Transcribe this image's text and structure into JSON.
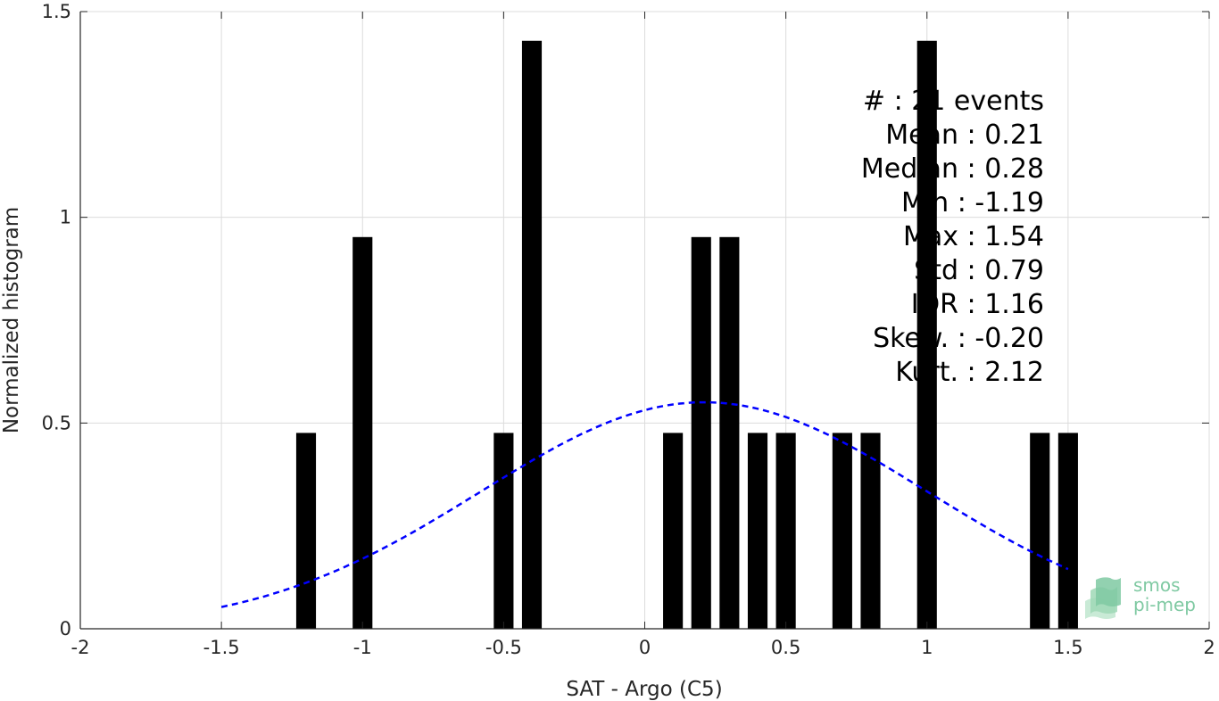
{
  "chart_data": {
    "type": "bar",
    "xlabel": "SAT - Argo (C5)",
    "ylabel": "Normalized histogram",
    "xlim": [
      -2,
      2
    ],
    "ylim": [
      0,
      1.5
    ],
    "xticks": [
      "-2",
      "-1.5",
      "-1",
      "-0.5",
      "0",
      "0.5",
      "1",
      "1.5",
      "2"
    ],
    "yticks": [
      "0",
      "0.5",
      "1",
      "1.5"
    ],
    "grid": true,
    "bar_width": 0.07,
    "bars": [
      {
        "x": -1.2,
        "y": 0.476
      },
      {
        "x": -1.0,
        "y": 0.952
      },
      {
        "x": -0.5,
        "y": 0.476
      },
      {
        "x": -0.4,
        "y": 1.429
      },
      {
        "x": 0.1,
        "y": 0.476
      },
      {
        "x": 0.2,
        "y": 0.952
      },
      {
        "x": 0.3,
        "y": 0.952
      },
      {
        "x": 0.4,
        "y": 0.476
      },
      {
        "x": 0.5,
        "y": 0.476
      },
      {
        "x": 0.7,
        "y": 0.476
      },
      {
        "x": 0.8,
        "y": 0.476
      },
      {
        "x": 1.0,
        "y": 1.429
      },
      {
        "x": 1.4,
        "y": 0.476
      },
      {
        "x": 1.5,
        "y": 0.476
      }
    ],
    "fit_curve": {
      "style": "dashed",
      "color": "#0000ff",
      "mean": 0.21,
      "std": 0.79,
      "x_range": [
        -1.5,
        1.5
      ]
    },
    "stats_lines": [
      "#  : 21 events",
      "Mean : 0.21",
      "Median : 0.28",
      "Min : -1.19",
      "Max : 1.54",
      "Std : 0.79",
      "IQR : 1.16",
      "Skew. : -0.20",
      "Kurt. : 2.12"
    ],
    "bar_color": "#000000"
  },
  "logo": {
    "line1": "smos",
    "line2": "pi-mep",
    "color": "#7fc9a2"
  }
}
